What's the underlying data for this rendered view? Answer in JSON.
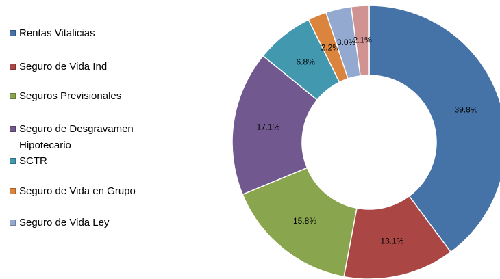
{
  "chart_data": {
    "type": "donut",
    "categories": [
      "Rentas Vitalicias",
      "Seguro de Vida Ind",
      "Seguros Previsionales",
      "Seguro de Desgravamen Hipotecario",
      "SCTR",
      "Seguro de Vida en Grupo",
      "Seguro de Vida Ley",
      null
    ],
    "values": [
      39.8,
      13.1,
      15.8,
      17.1,
      6.8,
      2.2,
      3.0,
      2.1
    ],
    "value_labels": [
      "39.8%",
      "13.1%",
      "15.8%",
      "17.1%",
      "6.8%",
      "2.2%",
      "3.0%",
      "2.1%"
    ],
    "colors": [
      "#4572a7",
      "#aa4643",
      "#89a54e",
      "#71588f",
      "#4198af",
      "#db843d",
      "#93a9cf",
      "#d19392"
    ],
    "legend": "left"
  }
}
